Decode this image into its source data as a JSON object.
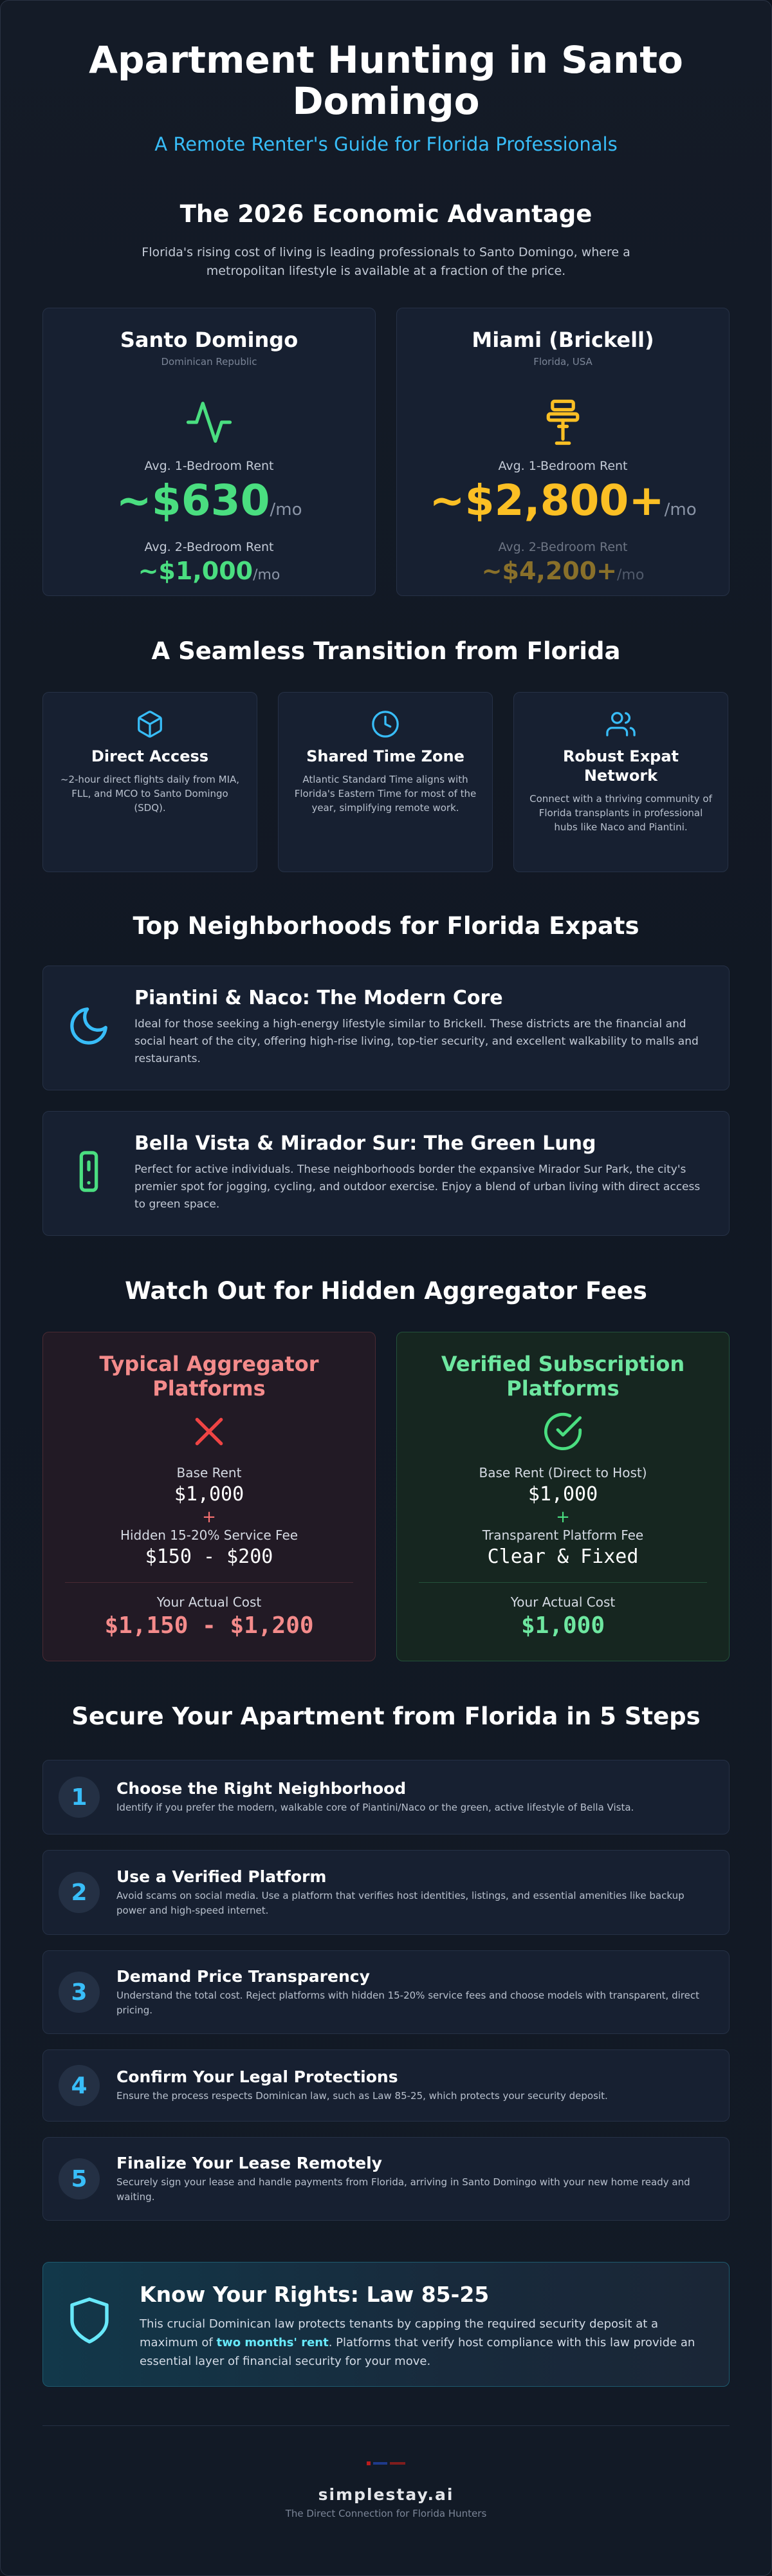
{
  "header": {
    "title": "Apartment Hunting in Santo Domingo",
    "subtitle": "A Remote Renter's Guide for Florida Professionals"
  },
  "economic": {
    "heading": "The 2026 Economic Advantage",
    "intro": "Florida's rising cost of living is leading professionals to Santo Domingo, where a metropolitan lifestyle is available at a fraction of the price.",
    "cities": [
      {
        "name": "Santo Domingo",
        "region": "Dominican Republic",
        "icon": "activity-icon",
        "label1": "Avg. 1-Bedroom Rent",
        "rent1": "~$630",
        "label2": "Avg. 2-Bedroom Rent",
        "rent2": "~$1,000",
        "unit": "/mo",
        "color": "#4ade80"
      },
      {
        "name": "Miami (Brickell)",
        "region": "Florida, USA",
        "icon": "lamp-icon",
        "label1": "Avg. 1-Bedroom Rent",
        "rent1": "~$2,800+",
        "label2": "Avg. 2-Bedroom Rent",
        "rent2": "~$4,200+",
        "unit": "/mo",
        "color": "#fbbf24"
      }
    ]
  },
  "transition": {
    "heading": "A Seamless Transition from Florida",
    "features": [
      {
        "icon": "cube-icon",
        "title": "Direct Access",
        "desc": "~2-hour direct flights daily from MIA, FLL, and MCO to Santo Domingo (SDQ)."
      },
      {
        "icon": "clock-icon",
        "title": "Shared Time Zone",
        "desc": "Atlantic Standard Time aligns with Florida's Eastern Time for most of the year, simplifying remote work."
      },
      {
        "icon": "users-icon",
        "title": "Robust Expat Network",
        "desc": "Connect with a thriving community of Florida transplants in professional hubs like Naco and Piantini."
      }
    ]
  },
  "neighborhoods": {
    "heading": "Top Neighborhoods for Florida Expats",
    "items": [
      {
        "icon": "moon-icon",
        "title": "Piantini & Naco: The Modern Core",
        "desc": "Ideal for those seeking a high-energy lifestyle similar to Brickell. These districts are the financial and social heart of the city, offering high-rise living, top-tier security, and excellent walkability to malls and restaurants."
      },
      {
        "icon": "phone-icon",
        "title": "Bella Vista & Mirador Sur: The Green Lung",
        "desc": "Perfect for active individuals. These neighborhoods border the expansive Mirador Sur Park, the city's premier spot for jogging, cycling, and outdoor exercise. Enjoy a blend of urban living with direct access to green space."
      }
    ]
  },
  "fees": {
    "heading": "Watch Out for Hidden Aggregator Fees",
    "bad": {
      "title": "Typical Aggregator Platforms",
      "icon": "x-icon",
      "base_label": "Base Rent",
      "base_value": "$1,000",
      "plus": "+",
      "fee_label": "Hidden 15-20% Service Fee",
      "fee_value": "$150 - $200",
      "total_label": "Your Actual Cost",
      "total_value": "$1,150 - $1,200"
    },
    "good": {
      "title": "Verified Subscription Platforms",
      "icon": "check-circle-icon",
      "base_label": "Base Rent (Direct to Host)",
      "base_value": "$1,000",
      "plus": "+",
      "fee_label": "Transparent Platform Fee",
      "fee_value": "Clear & Fixed",
      "total_label": "Your Actual Cost",
      "total_value": "$1,000"
    }
  },
  "steps": {
    "heading": "Secure Your Apartment from Florida in 5 Steps",
    "items": [
      {
        "num": "1",
        "title": "Choose the Right Neighborhood",
        "desc": "Identify if you prefer the modern, walkable core of Piantini/Naco or the green, active lifestyle of Bella Vista."
      },
      {
        "num": "2",
        "title": "Use a Verified Platform",
        "desc": "Avoid scams on social media. Use a platform that verifies host identities, listings, and essential amenities like backup power and high-speed internet."
      },
      {
        "num": "3",
        "title": "Demand Price Transparency",
        "desc": "Understand the total cost. Reject platforms with hidden 15-20% service fees and choose models with transparent, direct pricing."
      },
      {
        "num": "4",
        "title": "Confirm Your Legal Protections",
        "desc": "Ensure the process respects Dominican law, such as Law 85-25, which protects your security deposit."
      },
      {
        "num": "5",
        "title": "Finalize Your Lease Remotely",
        "desc": "Securely sign your lease and handle payments from Florida, arriving in Santo Domingo with your new home ready and waiting."
      }
    ]
  },
  "rights": {
    "title": "Know Your Rights: Law 85-25",
    "desc_before": "This crucial Dominican law protects tenants by capping the required security deposit at a maximum of ",
    "desc_highlight": "two months' rent",
    "desc_after": ". Platforms that verify host compliance with this law provide an essential layer of financial security for your move."
  },
  "footer": {
    "brand": "simplestay.ai",
    "tagline": "The Direct Connection for Florida Hunters"
  },
  "colors": {
    "accent": "#38bdf8",
    "green": "#4ade80",
    "amber": "#fbbf24",
    "red": "#f87171"
  }
}
